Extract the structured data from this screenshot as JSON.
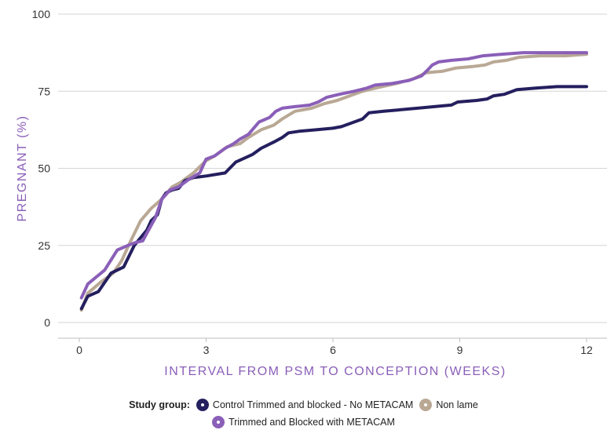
{
  "chart_data": {
    "type": "line",
    "title": "",
    "xlabel": "INTERVAL FROM PSM TO CONCEPTION (WEEKS)",
    "ylabel": "PREGNANT (%)",
    "xlim": [
      0,
      12
    ],
    "ylim": [
      0,
      100
    ],
    "xticks": [
      0,
      3,
      6,
      9,
      12
    ],
    "yticks": [
      0,
      25,
      50,
      75,
      100
    ],
    "grid": "horizontal",
    "legend_title": "Study group:",
    "legend_position": "bottom",
    "series": [
      {
        "name": "Control Trimmed and blocked - No METACAM",
        "color": "#241f5e",
        "points": [
          [
            0.05,
            4.5
          ],
          [
            0.2,
            8.5
          ],
          [
            0.45,
            10
          ],
          [
            0.75,
            16
          ],
          [
            1.05,
            18
          ],
          [
            1.3,
            25
          ],
          [
            1.45,
            27.5
          ],
          [
            1.6,
            30
          ],
          [
            1.7,
            33
          ],
          [
            1.85,
            35
          ],
          [
            1.95,
            40
          ],
          [
            2.05,
            42
          ],
          [
            2.2,
            43
          ],
          [
            2.35,
            43.5
          ],
          [
            2.5,
            46
          ],
          [
            2.7,
            47
          ],
          [
            3,
            47.5
          ],
          [
            3.45,
            48.5
          ],
          [
            3.7,
            52
          ],
          [
            4.1,
            54.5
          ],
          [
            4.3,
            56.5
          ],
          [
            4.6,
            58.5
          ],
          [
            4.8,
            60
          ],
          [
            4.95,
            61.5
          ],
          [
            5.2,
            62
          ],
          [
            5.6,
            62.5
          ],
          [
            6,
            63
          ],
          [
            6.2,
            63.5
          ],
          [
            6.4,
            64.5
          ],
          [
            6.7,
            66
          ],
          [
            6.85,
            68
          ],
          [
            7.2,
            68.5
          ],
          [
            8,
            69.5
          ],
          [
            8.8,
            70.5
          ],
          [
            8.95,
            71.5
          ],
          [
            9.4,
            72
          ],
          [
            9.65,
            72.5
          ],
          [
            9.8,
            73.5
          ],
          [
            10.05,
            74
          ],
          [
            10.35,
            75.5
          ],
          [
            10.8,
            76
          ],
          [
            11.3,
            76.5
          ],
          [
            12,
            76.5
          ]
        ]
      },
      {
        "name": "Non lame",
        "color": "#b9a894",
        "points": [
          [
            0.05,
            4
          ],
          [
            0.2,
            9.5
          ],
          [
            0.5,
            13
          ],
          [
            0.8,
            16
          ],
          [
            1.0,
            20
          ],
          [
            1.2,
            26
          ],
          [
            1.45,
            33
          ],
          [
            1.7,
            37
          ],
          [
            1.95,
            40
          ],
          [
            2.2,
            44
          ],
          [
            2.4,
            45.5
          ],
          [
            2.7,
            48.5
          ],
          [
            3.0,
            52.5
          ],
          [
            3.2,
            54
          ],
          [
            3.5,
            57
          ],
          [
            3.8,
            58
          ],
          [
            4.0,
            60
          ],
          [
            4.3,
            62.5
          ],
          [
            4.6,
            64
          ],
          [
            4.8,
            66
          ],
          [
            5.1,
            68.5
          ],
          [
            5.5,
            69.5
          ],
          [
            5.8,
            71
          ],
          [
            6.1,
            72
          ],
          [
            6.4,
            73.5
          ],
          [
            6.7,
            75
          ],
          [
            7.0,
            76
          ],
          [
            7.5,
            77.5
          ],
          [
            7.9,
            79
          ],
          [
            8.2,
            81
          ],
          [
            8.6,
            81.5
          ],
          [
            8.9,
            82.5
          ],
          [
            9.3,
            83
          ],
          [
            9.6,
            83.5
          ],
          [
            9.8,
            84.5
          ],
          [
            10.1,
            85
          ],
          [
            10.4,
            86
          ],
          [
            10.9,
            86.5
          ],
          [
            11.5,
            86.5
          ],
          [
            12,
            87
          ]
        ]
      },
      {
        "name": "Trimmed and Blocked with METACAM",
        "color": "#8a5fb8",
        "points": [
          [
            0.05,
            8
          ],
          [
            0.2,
            12.5
          ],
          [
            0.6,
            17
          ],
          [
            0.9,
            23.5
          ],
          [
            1.15,
            25
          ],
          [
            1.35,
            26
          ],
          [
            1.5,
            26.5
          ],
          [
            1.6,
            29
          ],
          [
            1.8,
            34
          ],
          [
            1.95,
            40
          ],
          [
            2.15,
            43
          ],
          [
            2.35,
            44
          ],
          [
            2.6,
            46.5
          ],
          [
            2.85,
            48.5
          ],
          [
            3.0,
            53
          ],
          [
            3.2,
            54
          ],
          [
            3.45,
            56.5
          ],
          [
            3.65,
            58
          ],
          [
            3.8,
            59.5
          ],
          [
            4.0,
            61
          ],
          [
            4.25,
            65
          ],
          [
            4.5,
            66.5
          ],
          [
            4.65,
            68.5
          ],
          [
            4.8,
            69.5
          ],
          [
            5.1,
            70
          ],
          [
            5.45,
            70.5
          ],
          [
            5.65,
            71.5
          ],
          [
            5.85,
            73
          ],
          [
            6.15,
            74
          ],
          [
            6.5,
            75
          ],
          [
            6.8,
            76
          ],
          [
            7.0,
            77
          ],
          [
            7.4,
            77.5
          ],
          [
            7.8,
            78.5
          ],
          [
            8.1,
            80
          ],
          [
            8.25,
            82
          ],
          [
            8.35,
            83.5
          ],
          [
            8.5,
            84.5
          ],
          [
            8.8,
            85
          ],
          [
            9.2,
            85.5
          ],
          [
            9.55,
            86.5
          ],
          [
            10.0,
            87
          ],
          [
            10.5,
            87.5
          ],
          [
            11.2,
            87.5
          ],
          [
            12,
            87.5
          ]
        ]
      }
    ]
  }
}
